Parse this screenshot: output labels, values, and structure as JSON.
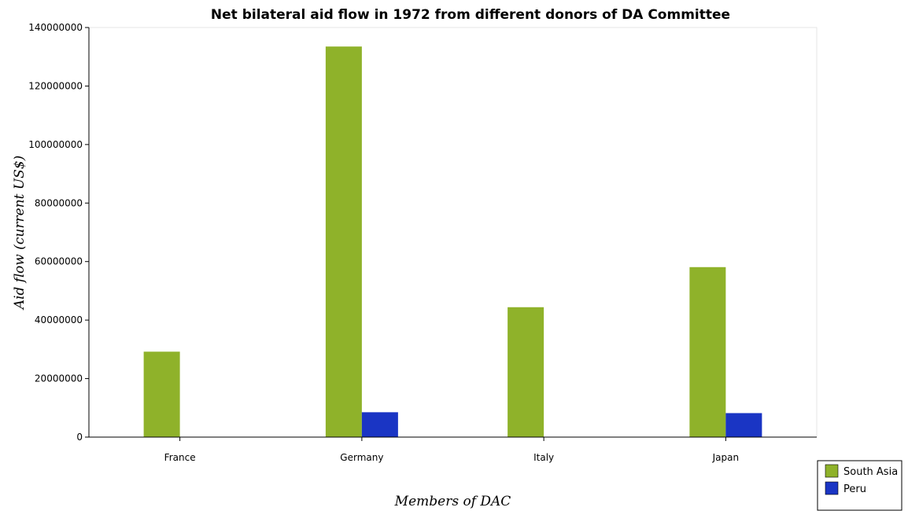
{
  "chart_data": {
    "type": "bar",
    "title": "Net bilateral aid flow in 1972 from different donors of DA Committee",
    "xlabel": "Members of DAC",
    "ylabel": "Aid flow (current US$)",
    "categories": [
      "France",
      "Germany",
      "Italy",
      "Japan"
    ],
    "series": [
      {
        "name": "South Asia",
        "color": "#8fb22a",
        "values": [
          29200000,
          133500000,
          44400000,
          58100000
        ]
      },
      {
        "name": "Peru",
        "color": "#1a35c4",
        "values": [
          0,
          8500000,
          0,
          8200000
        ]
      }
    ],
    "ylim": [
      0,
      140000000
    ],
    "yticks": [
      0,
      20000000,
      40000000,
      60000000,
      80000000,
      100000000,
      120000000,
      140000000
    ],
    "ytick_labels": [
      "0",
      "20000000",
      "40000000",
      "60000000",
      "80000000",
      "100000000",
      "120000000",
      "140000000"
    ],
    "grid": false,
    "legend_position": "bottom-right"
  }
}
